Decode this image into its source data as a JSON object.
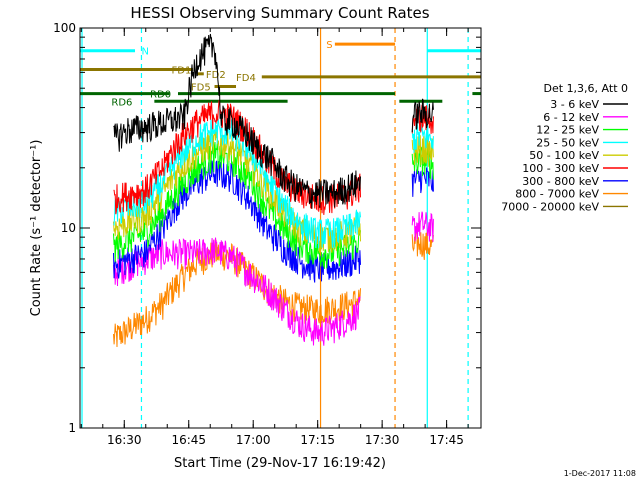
{
  "chart_data": {
    "type": "line",
    "title": "HESSI Observing Summary Count Rates",
    "xlabel": "Start Time (29-Nov-17 16:19:42)",
    "ylabel": "Count Rate (s⁻¹ detector⁻¹)",
    "ylim": [
      1,
      100
    ],
    "yscale": "log",
    "y_ticks": [
      {
        "v": 1,
        "label": "1"
      },
      {
        "v": 10,
        "label": "10"
      },
      {
        "v": 100,
        "label": "100"
      }
    ],
    "xlim": [
      "16:19:42",
      "17:53:00"
    ],
    "x_ticks": [
      {
        "t": "16:30",
        "label": "16:30"
      },
      {
        "t": "16:45",
        "label": "16:45"
      },
      {
        "t": "17:00",
        "label": "17:00"
      },
      {
        "t": "17:15",
        "label": "17:15"
      },
      {
        "t": "17:30",
        "label": "17:30"
      },
      {
        "t": "17:45",
        "label": "17:45"
      }
    ],
    "legend_title": "Det 1,3,6, Att 0",
    "legend_position": "right",
    "series": [
      {
        "name": "3 - 6 keV",
        "color": "#000000",
        "points": [
          [
            "16:27:30",
            28
          ],
          [
            "16:31",
            31
          ],
          [
            "16:35",
            32
          ],
          [
            "16:40",
            34
          ],
          [
            "16:44",
            36
          ],
          [
            "16:47",
            70
          ],
          [
            "16:49",
            78
          ],
          [
            "16:51",
            82
          ],
          [
            "16:52:30",
            35
          ],
          [
            "16:55",
            34
          ],
          [
            "16:58",
            30
          ],
          [
            "17:01",
            25
          ],
          [
            "17:04",
            22
          ],
          [
            "17:07",
            18
          ],
          [
            "17:10",
            16
          ],
          [
            "17:13",
            15
          ],
          [
            "17:16",
            15
          ],
          [
            "17:19",
            15
          ],
          [
            "17:22",
            16
          ],
          [
            "17:25",
            17
          ]
        ],
        "points2": [
          [
            "17:37",
            36
          ],
          [
            "17:39",
            38
          ],
          [
            "17:42",
            37
          ]
        ]
      },
      {
        "name": "6 - 12 keV",
        "color": "#ff00ff",
        "points": [
          [
            "16:27:30",
            6
          ],
          [
            "16:31",
            6.5
          ],
          [
            "16:35",
            7
          ],
          [
            "16:39",
            7.5
          ],
          [
            "16:43",
            7.5
          ],
          [
            "16:47",
            7.5
          ],
          [
            "16:51",
            7.8
          ],
          [
            "16:55",
            7.2
          ],
          [
            "16:59",
            6
          ],
          [
            "17:03",
            5
          ],
          [
            "17:07",
            4
          ],
          [
            "17:11",
            3.3
          ],
          [
            "17:15",
            3
          ],
          [
            "17:19",
            3.2
          ],
          [
            "17:23",
            3.6
          ],
          [
            "17:25",
            3.9
          ]
        ],
        "points2": [
          [
            "17:37",
            10
          ],
          [
            "17:39",
            10.5
          ],
          [
            "17:42",
            10
          ]
        ]
      },
      {
        "name": "12 - 25 keV",
        "color": "#00ff00",
        "points": [
          [
            "16:27:30",
            8
          ],
          [
            "16:31",
            8.8
          ],
          [
            "16:35",
            9.5
          ],
          [
            "16:39",
            12
          ],
          [
            "16:43",
            16
          ],
          [
            "16:47",
            20
          ],
          [
            "16:51",
            23
          ],
          [
            "16:55",
            22
          ],
          [
            "16:59",
            18
          ],
          [
            "17:03",
            13
          ],
          [
            "17:07",
            10
          ],
          [
            "17:11",
            8.3
          ],
          [
            "17:15",
            7.5
          ],
          [
            "17:19",
            7.6
          ],
          [
            "17:23",
            8.2
          ],
          [
            "17:25",
            8.8
          ]
        ],
        "points2": [
          [
            "17:37",
            21
          ],
          [
            "17:39",
            22
          ],
          [
            "17:42",
            21
          ]
        ]
      },
      {
        "name": "25 - 50 keV",
        "color": "#00ffff",
        "points": [
          [
            "16:27:30",
            12
          ],
          [
            "16:31",
            12.8
          ],
          [
            "16:35",
            13.5
          ],
          [
            "16:39",
            17
          ],
          [
            "16:43",
            23
          ],
          [
            "16:47",
            28
          ],
          [
            "16:51",
            31
          ],
          [
            "16:55",
            30
          ],
          [
            "16:59",
            25
          ],
          [
            "17:03",
            18
          ],
          [
            "17:07",
            13
          ],
          [
            "17:11",
            10.5
          ],
          [
            "17:15",
            9.5
          ],
          [
            "17:19",
            9.6
          ],
          [
            "17:23",
            10.2
          ],
          [
            "17:25",
            10.8
          ]
        ],
        "points2": [
          [
            "17:37",
            28
          ],
          [
            "17:39",
            29
          ],
          [
            "17:42",
            28
          ]
        ]
      },
      {
        "name": "50 - 100 keV",
        "color": "#cccc00",
        "points": [
          [
            "16:27:30",
            10
          ],
          [
            "16:31",
            10.8
          ],
          [
            "16:35",
            11.5
          ],
          [
            "16:39",
            15
          ],
          [
            "16:43",
            20
          ],
          [
            "16:47",
            24
          ],
          [
            "16:51",
            27
          ],
          [
            "16:55",
            26
          ],
          [
            "16:59",
            21
          ],
          [
            "17:03",
            16
          ],
          [
            "17:07",
            12
          ],
          [
            "17:11",
            9.8
          ],
          [
            "17:15",
            9
          ],
          [
            "17:19",
            9.1
          ],
          [
            "17:23",
            9.6
          ],
          [
            "17:25",
            10.2
          ]
        ],
        "points2": [
          [
            "17:37",
            24
          ],
          [
            "17:39",
            25
          ],
          [
            "17:42",
            24
          ]
        ]
      },
      {
        "name": "100 - 300 keV",
        "color": "#ff0000",
        "points": [
          [
            "16:27:30",
            14
          ],
          [
            "16:31",
            14.8
          ],
          [
            "16:35",
            15.5
          ],
          [
            "16:39",
            20
          ],
          [
            "16:43",
            28
          ],
          [
            "16:47",
            34
          ],
          [
            "16:51",
            38
          ],
          [
            "16:55",
            36
          ],
          [
            "16:59",
            30
          ],
          [
            "17:03",
            22
          ],
          [
            "17:07",
            17
          ],
          [
            "17:11",
            15
          ],
          [
            "17:15",
            14
          ],
          [
            "17:19",
            14.2
          ],
          [
            "17:23",
            15
          ],
          [
            "17:25",
            16
          ]
        ],
        "points2": [
          [
            "17:37",
            35
          ],
          [
            "17:39",
            36
          ],
          [
            "17:42",
            35
          ]
        ]
      },
      {
        "name": "300 - 800 keV",
        "color": "#0000ff",
        "points": [
          [
            "16:27:30",
            6.5
          ],
          [
            "16:31",
            7
          ],
          [
            "16:35",
            7.5
          ],
          [
            "16:39",
            10
          ],
          [
            "16:43",
            14
          ],
          [
            "16:47",
            17
          ],
          [
            "16:51",
            19
          ],
          [
            "16:55",
            18
          ],
          [
            "16:59",
            14
          ],
          [
            "17:03",
            10
          ],
          [
            "17:07",
            8
          ],
          [
            "17:11",
            6.8
          ],
          [
            "17:15",
            6.3
          ],
          [
            "17:19",
            6.4
          ],
          [
            "17:23",
            6.8
          ],
          [
            "17:25",
            7.2
          ]
        ],
        "points2": [
          [
            "17:37",
            17
          ],
          [
            "17:39",
            18
          ],
          [
            "17:42",
            17
          ]
        ]
      },
      {
        "name": "800 - 7000 keV",
        "color": "#ff8800",
        "points": [
          [
            "16:27:30",
            2.8
          ],
          [
            "16:31",
            3.1
          ],
          [
            "16:35",
            3.5
          ],
          [
            "16:39",
            4.2
          ],
          [
            "16:43",
            5.5
          ],
          [
            "16:47",
            6.8
          ],
          [
            "16:51",
            7.5
          ],
          [
            "16:55",
            7.2
          ],
          [
            "16:59",
            6
          ],
          [
            "17:03",
            5
          ],
          [
            "17:07",
            4.3
          ],
          [
            "17:11",
            4
          ],
          [
            "17:15",
            3.9
          ],
          [
            "17:19",
            4
          ],
          [
            "17:23",
            4.2
          ],
          [
            "17:25",
            4.5
          ]
        ],
        "points2": [
          [
            "17:37",
            8
          ],
          [
            "17:39",
            8.5
          ],
          [
            "17:42",
            8
          ]
        ]
      },
      {
        "name": "7000 - 20000 keV",
        "color": "#8b7500",
        "points": [],
        "points2": []
      }
    ],
    "flag_bars": [
      {
        "label": "N",
        "color": "#00ffff",
        "y_level": 77,
        "segments": [
          [
            "16:19:42",
            "16:32:30"
          ],
          [
            "17:40:30",
            "17:53:00"
          ]
        ],
        "label_at": "16:34"
      },
      {
        "label": "S",
        "color": "#ff8800",
        "y_level": 83,
        "segments": [
          [
            "17:19",
            "17:33"
          ]
        ],
        "label_at": "17:17"
      },
      {
        "label": "FD1",
        "color": "#8b7500",
        "y_level": 62,
        "segments": [
          [
            "16:19:42",
            "16:46:00"
          ]
        ],
        "label_at": "16:41"
      },
      {
        "label": "FD2",
        "color": "#8b7500",
        "y_level": 59,
        "segments": [
          [
            "16:47:00",
            "16:48:30"
          ]
        ],
        "label_at": "16:49"
      },
      {
        "label": "FD4",
        "color": "#8b7500",
        "y_level": 57,
        "segments": [
          [
            "17:02:00",
            "17:53:00"
          ]
        ],
        "label_at": "16:56"
      },
      {
        "label": "FD5",
        "color": "#8b7500",
        "y_level": 51,
        "segments": [
          [
            "16:51:00",
            "16:56:00"
          ]
        ],
        "label_at": "16:45:30"
      },
      {
        "label": "RD0",
        "color": "#006400",
        "y_level": 47,
        "segments": [
          [
            "16:19:42",
            "16:40:30"
          ],
          [
            "16:42:30",
            "17:33"
          ],
          [
            "17:51",
            "17:53:00"
          ]
        ],
        "label_at": "16:36"
      },
      {
        "label": "RD6",
        "color": "#006400",
        "y_level": 43,
        "segments": [
          [
            "16:37",
            "17:08"
          ],
          [
            "17:34",
            "17:44"
          ]
        ],
        "label_at": "16:27"
      }
    ],
    "vertical_lines": [
      {
        "t": "16:20:10",
        "color": "#00ffff",
        "dash": false
      },
      {
        "t": "16:34:00",
        "color": "#00ffff",
        "dash": true
      },
      {
        "t": "17:15:40",
        "color": "#ff8800",
        "dash": false
      },
      {
        "t": "17:33:00",
        "color": "#ff8800",
        "dash": true
      },
      {
        "t": "17:40:30",
        "color": "#00ffff",
        "dash": false
      },
      {
        "t": "17:50:00",
        "color": "#00ffff",
        "dash": true
      }
    ]
  },
  "footer_date": "1-Dec-2017 11:08"
}
